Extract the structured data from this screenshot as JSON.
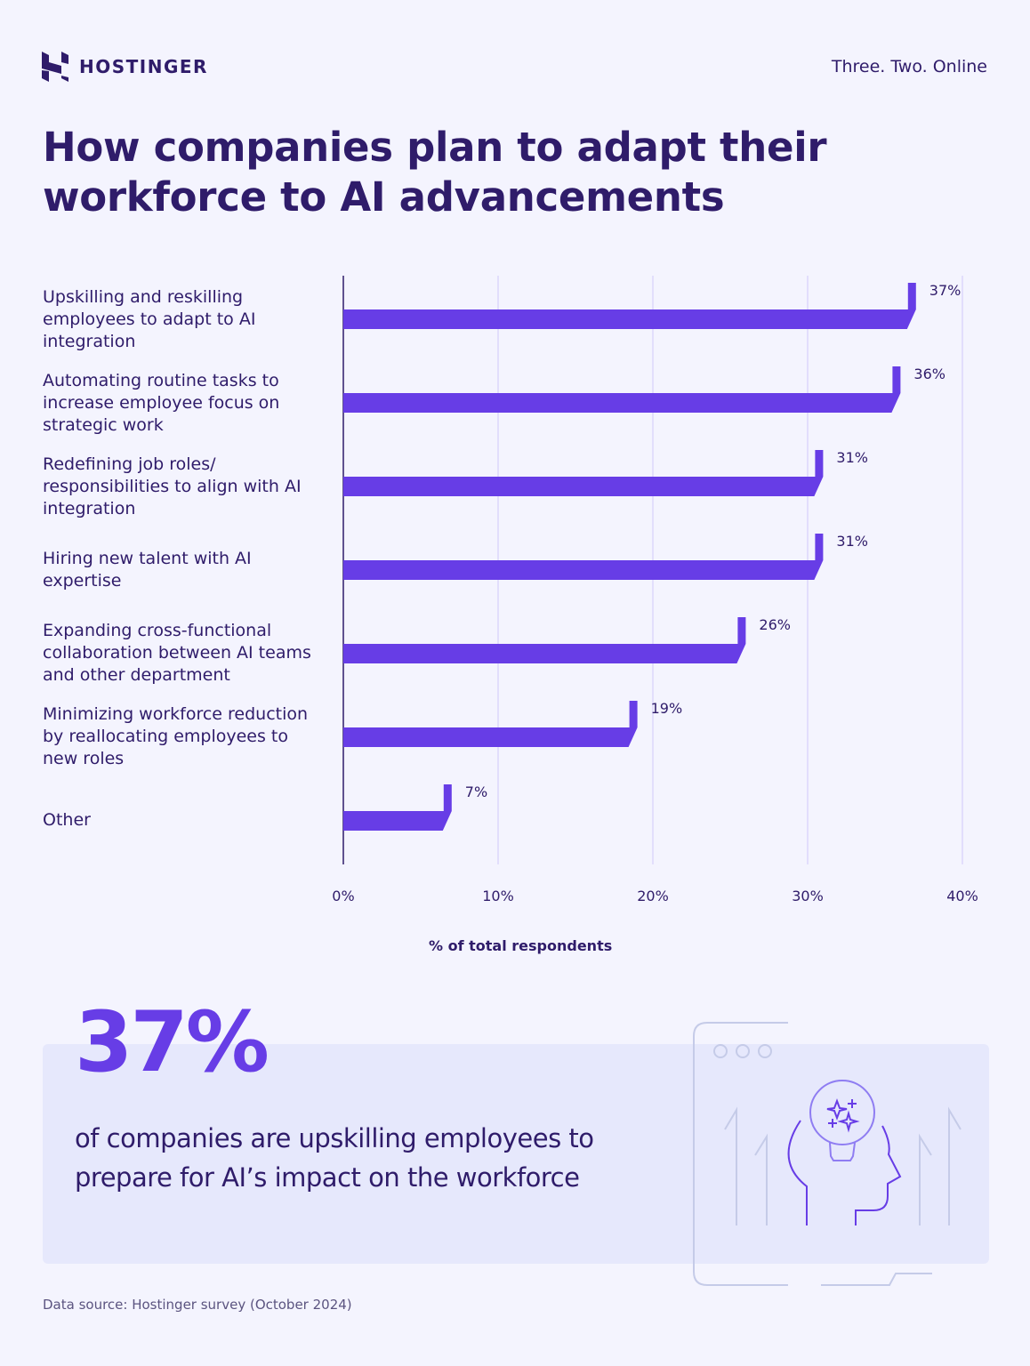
{
  "header": {
    "brand": "HOSTINGER",
    "tagline": "Three. Two. Online"
  },
  "title": "How companies plan to adapt their workforce to AI advancements",
  "colors": {
    "background": "#f4f4fe",
    "text": "#2f1c6a",
    "bar": "#673de6",
    "grid": "#d5d0fb"
  },
  "chart_data": {
    "type": "bar",
    "orientation": "horizontal",
    "categories": [
      "Upskilling and reskilling employees to adapt to AI integration",
      "Automating routine tasks to increase employee focus on strategic work",
      "Redefining job roles/ responsibilities to align with AI integration",
      "Hiring new talent with AI expertise",
      "Expanding cross-functional collaboration between AI teams and other department",
      "Minimizing workforce reduction by reallocating employees to new roles",
      "Other"
    ],
    "values": [
      37,
      36,
      31,
      31,
      26,
      19,
      7
    ],
    "value_labels": [
      "37%",
      "36%",
      "31%",
      "31%",
      "26%",
      "19%",
      "7%"
    ],
    "xlabel": "% of total respondents",
    "xlim": [
      0,
      40
    ],
    "xticks": [
      "0%",
      "10%",
      "20%",
      "30%",
      "40%"
    ],
    "grid": true
  },
  "highlight": {
    "value": "37%",
    "text": "of companies are upskilling employees to prepare for AI’s impact on the workforce",
    "icon": "head-with-lightbulb-sparkles-icon"
  },
  "source": "Data source: Hostinger survey (October 2024)"
}
